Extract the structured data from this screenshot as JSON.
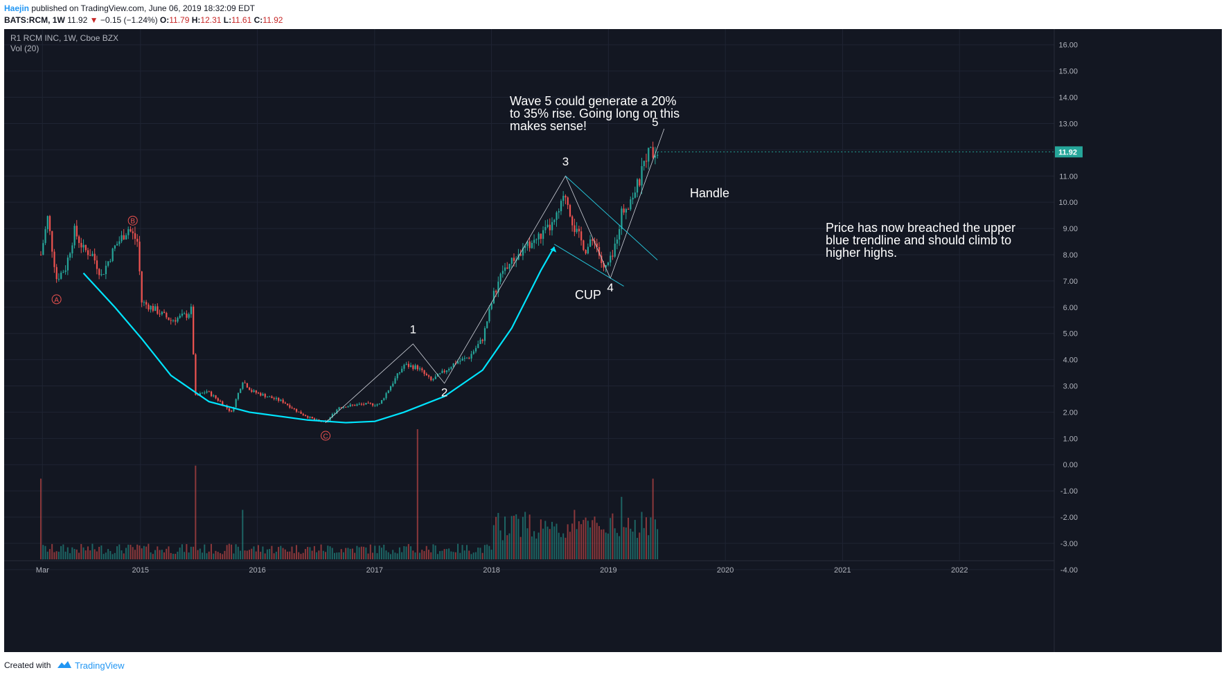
{
  "header": {
    "author": "Haejin",
    "published_text": " published on TradingView.com, June 06, 2019 18:32:09 EDT",
    "symbol": "BATS:RCM, 1W",
    "last": "11.92",
    "change": "−0.15 (−1.24%)",
    "open_label": "O:",
    "open": "11.79",
    "high_label": "H:",
    "high": "12.31",
    "low_label": "L:",
    "low": "11.61",
    "close_label": "C:",
    "close": "11.92"
  },
  "legend": {
    "title": "R1 RCM INC, 1W, Cboe BZX",
    "volume": "Vol (20)"
  },
  "footer": {
    "created": "Created with",
    "brand": "TradingView"
  },
  "colors": {
    "background": "#131722",
    "up": "#26a69a",
    "down": "#ef5350",
    "cup": "#00e5ff",
    "trend": "#26c6da",
    "wave": "#d1d4dc",
    "grid": "#1f2433",
    "last_badge": "#26a69a"
  },
  "chart_data": {
    "type": "candlestick",
    "symbol": "BATS:RCM",
    "interval": "1W",
    "y_axis": {
      "ylim": [
        -4.4,
        16.6
      ],
      "ticks": [
        "16.00",
        "15.00",
        "14.00",
        "13.00",
        "12.00",
        "11.00",
        "10.00",
        "9.00",
        "8.00",
        "7.00",
        "6.00",
        "5.00",
        "4.00",
        "3.00",
        "2.00",
        "1.00",
        "0.00",
        "-1.00",
        "-2.00",
        "-3.00",
        "-4.00"
      ]
    },
    "x_axis": {
      "ticks": [
        "Mar",
        "2015",
        "2016",
        "2017",
        "2018",
        "2019",
        "2020",
        "2021",
        "2022"
      ]
    },
    "last_price": "11.92",
    "price_path": [
      [
        "2014-02-24",
        8.0
      ],
      [
        "2014-03-17",
        9.4
      ],
      [
        "2014-04-14",
        7.1
      ],
      [
        "2014-05-12",
        7.5
      ],
      [
        "2014-06-09",
        8.9
      ],
      [
        "2014-07-07",
        8.2
      ],
      [
        "2014-08-04",
        8.0
      ],
      [
        "2014-09-01",
        7.2
      ],
      [
        "2014-10-13",
        8.3
      ],
      [
        "2014-11-24",
        9.0
      ],
      [
        "2014-12-22",
        8.5
      ],
      [
        "2015-01-05",
        6.2
      ],
      [
        "2015-02-16",
        5.9
      ],
      [
        "2015-04-06",
        5.5
      ],
      [
        "2015-05-25",
        5.7
      ],
      [
        "2015-06-08",
        5.9
      ],
      [
        "2015-06-22",
        2.6
      ],
      [
        "2015-07-27",
        2.8
      ],
      [
        "2015-09-07",
        2.4
      ],
      [
        "2015-10-12",
        2.0
      ],
      [
        "2015-11-16",
        3.2
      ],
      [
        "2015-12-14",
        2.8
      ],
      [
        "2016-02-01",
        2.6
      ],
      [
        "2016-03-21",
        2.4
      ],
      [
        "2016-05-09",
        2.0
      ],
      [
        "2016-06-27",
        1.7
      ],
      [
        "2016-08-01",
        1.6
      ],
      [
        "2016-09-12",
        2.2
      ],
      [
        "2016-11-21",
        2.3
      ],
      [
        "2017-01-16",
        2.3
      ],
      [
        "2017-02-20",
        3.0
      ],
      [
        "2017-04-03",
        3.8
      ],
      [
        "2017-05-15",
        3.7
      ],
      [
        "2017-06-26",
        3.2
      ],
      [
        "2017-07-31",
        3.5
      ],
      [
        "2017-09-11",
        3.9
      ],
      [
        "2017-10-23",
        4.1
      ],
      [
        "2017-12-04",
        4.8
      ],
      [
        "2018-01-08",
        6.5
      ],
      [
        "2018-02-05",
        7.4
      ],
      [
        "2018-03-19",
        7.9
      ],
      [
        "2018-04-30",
        8.4
      ],
      [
        "2018-06-11",
        8.8
      ],
      [
        "2018-07-16",
        9.2
      ],
      [
        "2018-08-20",
        10.3
      ],
      [
        "2018-09-17",
        9.0
      ],
      [
        "2018-10-22",
        8.2
      ],
      [
        "2018-11-19",
        8.6
      ],
      [
        "2018-12-17",
        7.4
      ],
      [
        "2019-01-14",
        7.9
      ],
      [
        "2019-02-11",
        9.6
      ],
      [
        "2019-03-11",
        10.1
      ],
      [
        "2019-04-08",
        10.8
      ],
      [
        "2019-04-29",
        11.8
      ],
      [
        "2019-05-20",
        12.0
      ],
      [
        "2019-06-03",
        11.92
      ]
    ],
    "volume_spikes": [
      [
        "2014-02-24",
        0.62
      ],
      [
        "2015-06-22",
        0.72
      ],
      [
        "2015-11-16",
        0.38
      ],
      [
        "2017-05-15",
        1.0
      ],
      [
        "2018-09-17",
        0.38
      ],
      [
        "2019-02-11",
        0.48
      ],
      [
        "2019-05-20",
        0.62
      ]
    ],
    "labels": {
      "A": [
        "2014-04-14",
        6.3
      ],
      "B": [
        "2014-12-08",
        9.3
      ],
      "C": [
        "2016-08-01",
        1.1
      ],
      "1": [
        "2017-05-01",
        5.0
      ],
      "2": [
        "2017-08-07",
        2.6
      ],
      "3": [
        "2018-08-20",
        11.4
      ],
      "4": [
        "2019-01-07",
        6.6
      ],
      "5": [
        "2019-05-27",
        12.9
      ]
    },
    "annotations": {
      "wave5": [
        "Wave 5 could generate a 20%",
        "to 35% rise. Going long on this",
        "makes sense!"
      ],
      "handle": "Handle",
      "cup": "CUP",
      "breach": [
        "Price has now breached the upper",
        "blue trendline and should climb to",
        "higher highs."
      ]
    }
  }
}
